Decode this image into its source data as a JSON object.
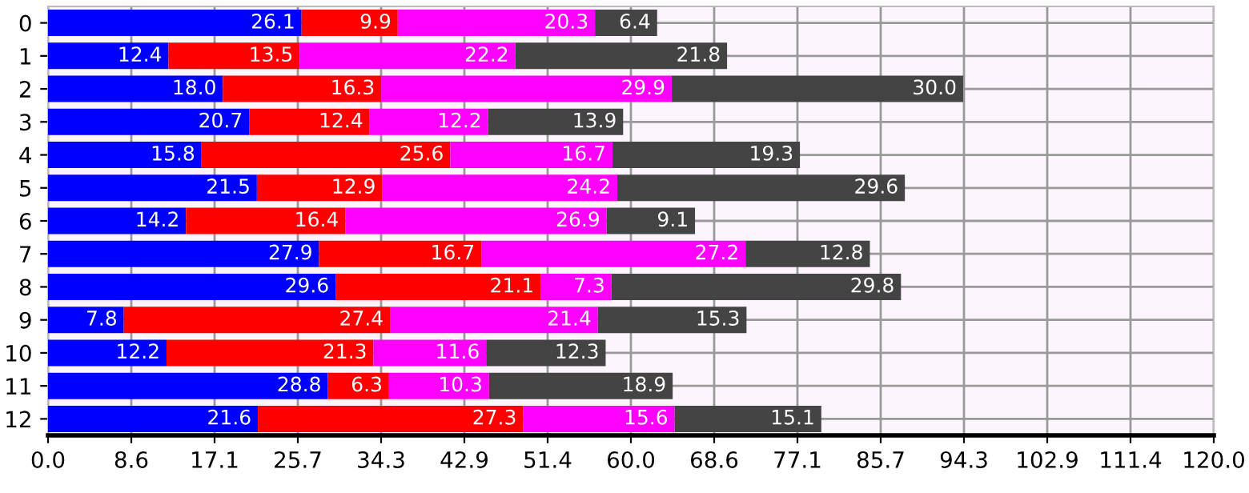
{
  "chart_data": {
    "type": "bar",
    "orientation": "horizontal",
    "stacked": true,
    "grid": true,
    "categories": [
      "0",
      "1",
      "2",
      "3",
      "4",
      "5",
      "6",
      "7",
      "8",
      "9",
      "10",
      "11",
      "12"
    ],
    "series": [
      {
        "color": "#0000ff",
        "values": [
          26.1,
          12.4,
          18.0,
          20.7,
          15.8,
          21.5,
          14.2,
          27.9,
          29.6,
          7.8,
          12.2,
          28.8,
          21.6
        ],
        "value_labels": [
          "26.1",
          "12.4",
          "18.0",
          "20.7",
          "15.8",
          "21.5",
          "14.2",
          "27.9",
          "29.6",
          "7.8",
          "12.2",
          "28.8",
          "21.6"
        ]
      },
      {
        "color": "#ff0000",
        "values": [
          9.9,
          13.5,
          16.3,
          12.4,
          25.6,
          12.9,
          16.4,
          16.7,
          21.1,
          27.4,
          21.3,
          6.3,
          27.3
        ],
        "value_labels": [
          "9.9",
          "13.5",
          "16.3",
          "12.4",
          "25.6",
          "12.9",
          "16.4",
          "16.7",
          "21.1",
          "27.4",
          "21.3",
          "6.3",
          "27.3"
        ]
      },
      {
        "color": "#ff00ff",
        "values": [
          20.3,
          22.2,
          29.9,
          12.2,
          16.7,
          24.2,
          26.9,
          27.2,
          7.3,
          21.4,
          11.6,
          10.3,
          15.6
        ],
        "value_labels": [
          "20.3",
          "22.2",
          "29.9",
          "12.2",
          "16.7",
          "24.2",
          "26.9",
          "27.2",
          "7.3",
          "21.4",
          "11.6",
          "10.3",
          "15.6"
        ]
      },
      {
        "color": "#444444",
        "values": [
          6.4,
          21.8,
          30.0,
          13.9,
          19.3,
          29.6,
          9.1,
          12.8,
          29.8,
          15.3,
          12.3,
          18.9,
          15.1
        ],
        "value_labels": [
          "6.4",
          "21.8",
          "30.0",
          "13.9",
          "19.3",
          "29.6",
          "9.1",
          "12.8",
          "29.8",
          "15.3",
          "12.3",
          "18.9",
          "15.1"
        ]
      }
    ],
    "xlim": [
      0,
      120
    ],
    "xticks": [
      {
        "value": 0,
        "label": "0.0"
      },
      {
        "value": 8.571,
        "label": "8.6"
      },
      {
        "value": 17.143,
        "label": "17.1"
      },
      {
        "value": 25.714,
        "label": "25.7"
      },
      {
        "value": 34.286,
        "label": "34.3"
      },
      {
        "value": 42.857,
        "label": "42.9"
      },
      {
        "value": 51.429,
        "label": "51.4"
      },
      {
        "value": 60,
        "label": "60.0"
      },
      {
        "value": 68.571,
        "label": "68.6"
      },
      {
        "value": 77.143,
        "label": "77.1"
      },
      {
        "value": 85.714,
        "label": "85.7"
      },
      {
        "value": 94.286,
        "label": "94.3"
      },
      {
        "value": 102.857,
        "label": "102.9"
      },
      {
        "value": 111.429,
        "label": "111.4"
      },
      {
        "value": 120,
        "label": "120.0"
      }
    ]
  }
}
